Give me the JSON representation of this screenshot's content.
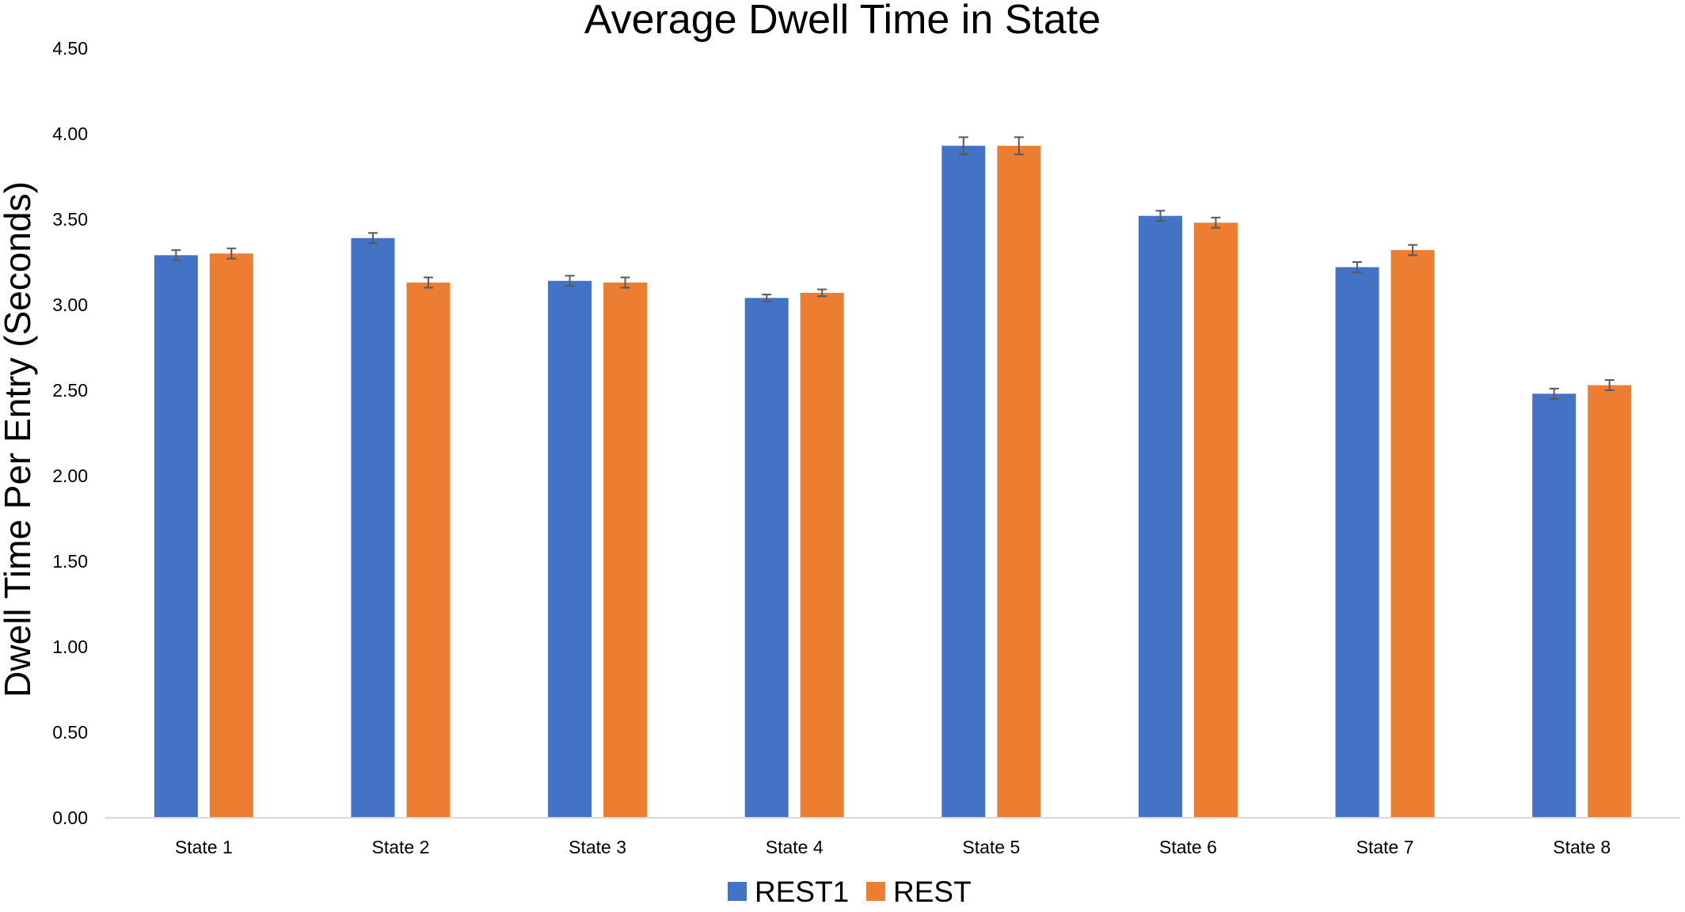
{
  "chart_data": {
    "type": "bar",
    "title": "Average Dwell Time in State",
    "xlabel": "",
    "ylabel": "Dwell Time Per Entry (Seconds)",
    "ylim": [
      0,
      4.5
    ],
    "yticks": [
      "0.00",
      "0.50",
      "1.00",
      "1.50",
      "2.00",
      "2.50",
      "3.00",
      "3.50",
      "4.00",
      "4.50"
    ],
    "categories": [
      "State 1",
      "State 2",
      "State 3",
      "State 4",
      "State 5",
      "State 6",
      "State 7",
      "State 8"
    ],
    "series": [
      {
        "name": "REST1",
        "color": "#4472C4",
        "values": [
          3.29,
          3.39,
          3.14,
          3.04,
          3.93,
          3.52,
          3.22,
          2.48
        ],
        "errors": [
          0.03,
          0.03,
          0.03,
          0.02,
          0.05,
          0.03,
          0.03,
          0.03
        ]
      },
      {
        "name": "REST",
        "color": "#ED7D31",
        "values": [
          3.3,
          3.13,
          3.13,
          3.07,
          3.93,
          3.48,
          3.32,
          2.53
        ],
        "errors": [
          0.03,
          0.03,
          0.03,
          0.02,
          0.05,
          0.03,
          0.03,
          0.03
        ]
      }
    ],
    "grid": false,
    "error_bars": true,
    "legend_position": "bottom"
  }
}
